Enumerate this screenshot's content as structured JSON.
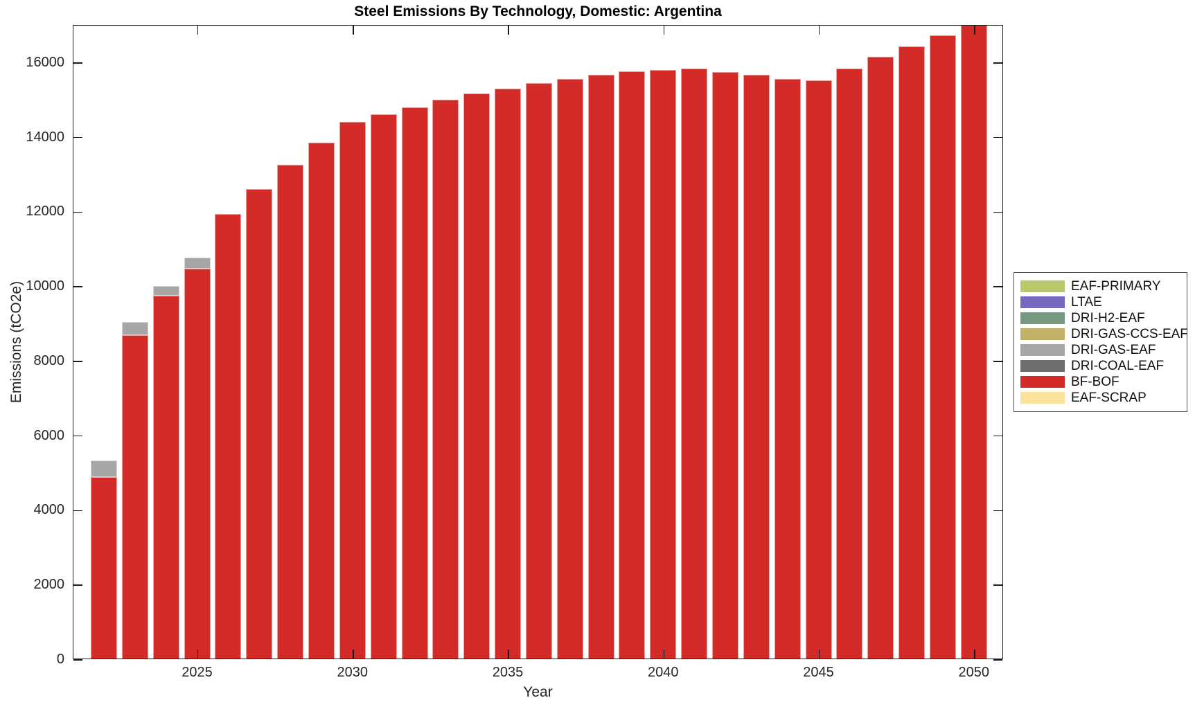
{
  "figure": {
    "title": "Steel Emissions By Technology, Domestic: Argentina",
    "xlabel": "Year",
    "ylabel": "Emissions (tCO2e)"
  },
  "chart_data": {
    "type": "bar",
    "stacked": true,
    "title": "Steel Emissions By Technology, Domestic: Argentina",
    "xlabel": "Year",
    "ylabel": "Emissions (tCO2e)",
    "ylim": [
      0,
      17000
    ],
    "yticks": [
      0,
      2000,
      4000,
      6000,
      8000,
      10000,
      12000,
      14000,
      16000
    ],
    "xticks": [
      2025,
      2030,
      2035,
      2040,
      2045,
      2050
    ],
    "grid": false,
    "categories": [
      2022,
      2023,
      2024,
      2025,
      2026,
      2027,
      2028,
      2029,
      2030,
      2031,
      2032,
      2033,
      2034,
      2035,
      2036,
      2037,
      2038,
      2039,
      2040,
      2041,
      2042,
      2043,
      2044,
      2045,
      2046,
      2047,
      2048,
      2049,
      2050
    ],
    "series": [
      {
        "name": "EAF-SCRAP",
        "color": "#fbe39c",
        "values": [
          0,
          0,
          0,
          0,
          0,
          0,
          0,
          0,
          0,
          0,
          0,
          0,
          0,
          0,
          0,
          0,
          0,
          0,
          0,
          0,
          0,
          0,
          0,
          0,
          0,
          0,
          0,
          0,
          0
        ]
      },
      {
        "name": "BF-BOF",
        "color": "#d32b27",
        "values": [
          4890,
          8680,
          9740,
          10460,
          11930,
          12600,
          13250,
          13850,
          14400,
          14610,
          14800,
          15000,
          15170,
          15300,
          15440,
          15550,
          15660,
          15750,
          15800,
          15830,
          15740,
          15660,
          15560,
          15520,
          15830,
          16140,
          16420,
          16720,
          17050
        ]
      },
      {
        "name": "DRI-COAL-EAF",
        "color": "#6e6e6e",
        "values": [
          0,
          0,
          0,
          0,
          0,
          0,
          0,
          0,
          0,
          0,
          0,
          0,
          0,
          0,
          0,
          0,
          0,
          0,
          0,
          0,
          0,
          0,
          0,
          0,
          0,
          0,
          0,
          0,
          0
        ]
      },
      {
        "name": "DRI-GAS-EAF",
        "color": "#a6a6a6",
        "values": [
          445,
          355,
          260,
          300,
          0,
          0,
          0,
          0,
          0,
          0,
          0,
          0,
          0,
          0,
          0,
          0,
          0,
          0,
          0,
          0,
          0,
          0,
          0,
          0,
          0,
          0,
          0,
          0,
          0
        ]
      },
      {
        "name": "DRI-GAS-CCS-EAF",
        "color": "#c1b268",
        "values": [
          0,
          0,
          0,
          0,
          0,
          0,
          0,
          0,
          0,
          0,
          0,
          0,
          0,
          0,
          0,
          0,
          0,
          0,
          0,
          0,
          0,
          0,
          0,
          0,
          0,
          0,
          0,
          0,
          0
        ]
      },
      {
        "name": "DRI-H2-EAF",
        "color": "#75997e",
        "values": [
          0,
          0,
          0,
          0,
          0,
          0,
          0,
          0,
          0,
          0,
          0,
          0,
          0,
          0,
          0,
          0,
          0,
          0,
          0,
          0,
          0,
          0,
          0,
          0,
          0,
          0,
          0,
          0,
          0
        ]
      },
      {
        "name": "LTAE",
        "color": "#7667c1",
        "values": [
          0,
          0,
          0,
          0,
          0,
          0,
          0,
          0,
          0,
          0,
          0,
          0,
          0,
          0,
          0,
          0,
          0,
          0,
          0,
          0,
          0,
          0,
          0,
          0,
          0,
          0,
          0,
          0,
          0
        ]
      },
      {
        "name": "EAF-PRIMARY",
        "color": "#b9c868",
        "values": [
          0,
          0,
          0,
          0,
          0,
          0,
          0,
          0,
          0,
          0,
          0,
          0,
          0,
          0,
          0,
          0,
          0,
          0,
          0,
          0,
          0,
          0,
          0,
          0,
          0,
          0,
          0,
          0,
          0
        ]
      }
    ],
    "legend": {
      "position": "right",
      "entries": [
        {
          "label": "EAF-PRIMARY",
          "color": "#b9c868"
        },
        {
          "label": "LTAE",
          "color": "#7667c1"
        },
        {
          "label": "DRI-H2-EAF",
          "color": "#75997e"
        },
        {
          "label": "DRI-GAS-CCS-EAF",
          "color": "#c1b268"
        },
        {
          "label": "DRI-GAS-EAF",
          "color": "#a6a6a6"
        },
        {
          "label": "DRI-COAL-EAF",
          "color": "#6e6e6e"
        },
        {
          "label": "BF-BOF",
          "color": "#d32b27"
        },
        {
          "label": "EAF-SCRAP",
          "color": "#fbe39c"
        }
      ]
    }
  }
}
